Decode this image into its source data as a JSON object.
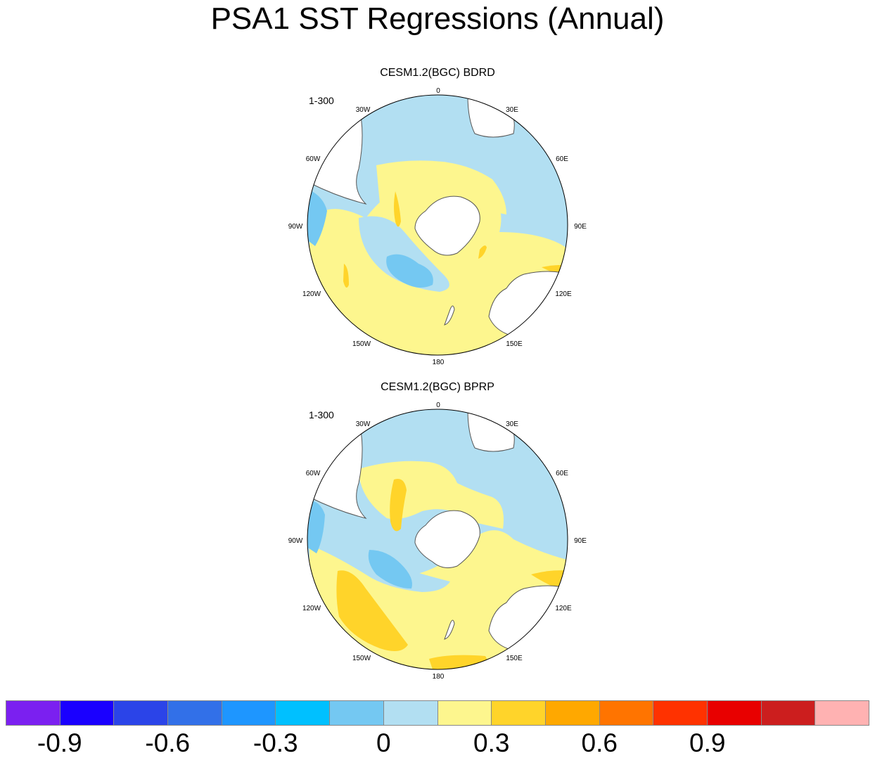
{
  "title": "PSA1 SST Regressions (Annual)",
  "panels": [
    {
      "title": "CESM1.2(BGC) BDRD",
      "years": "1-300"
    },
    {
      "title": "CESM1.2(BGC) BPRP",
      "years": "1-300"
    }
  ],
  "longitude_labels": {
    "0": "0",
    "30E": "30E",
    "60E": "60E",
    "90E": "90E",
    "120E": "120E",
    "150E": "150E",
    "180": "180",
    "150W": "150W",
    "120W": "120W",
    "90W": "90W",
    "60W": "60W",
    "30W": "30W"
  },
  "colorbar": {
    "colors": [
      "#7b20f0",
      "#1a00ff",
      "#2b44e8",
      "#3270e8",
      "#1e96ff",
      "#00c0ff",
      "#74c8f2",
      "#b2dff2",
      "#fdf68e",
      "#ffd42a",
      "#ffa800",
      "#ff7400",
      "#ff3200",
      "#e80000",
      "#cc1e1e",
      "#ffb2b2"
    ],
    "labels": [
      "-0.9",
      "-0.6",
      "-0.3",
      "0",
      "0.3",
      "0.6",
      "0.9"
    ]
  }
}
